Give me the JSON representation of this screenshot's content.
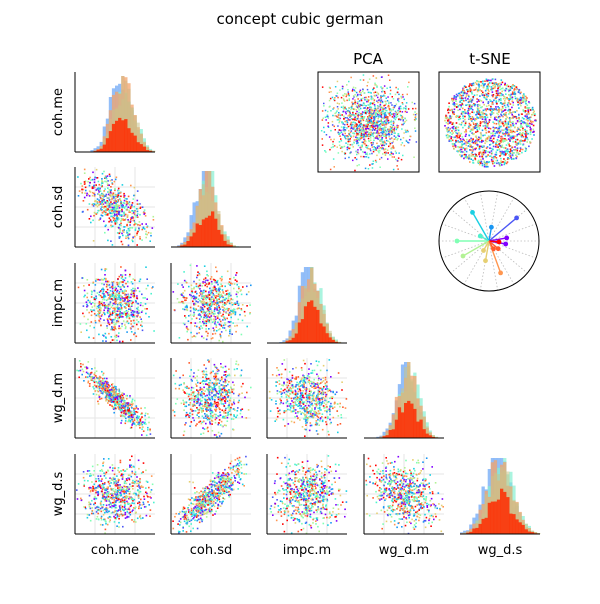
{
  "figure": {
    "title": "concept cubic german",
    "pca_title": "PCA",
    "tsne_title": "t-SNE"
  },
  "colors": {
    "palette": [
      "#8000ff",
      "#4b56f5",
      "#1996f3",
      "#1acfe3",
      "#4cf2ce",
      "#80ffb4",
      "#b2f295",
      "#e6cf72",
      "#ff964f",
      "#ff5a2b",
      "#ff0000"
    ],
    "hist_blue": "#6fa8f6",
    "hist_teal": "#86f0d2",
    "hist_orange": "#f3a36b",
    "hist_olive": "#c8c28a",
    "hist_red": "#ff2a00"
  },
  "chart_data": {
    "type": "scatter",
    "variables": [
      "coh.me",
      "coh.sd",
      "impc.m",
      "wg_d.m",
      "wg_d.s"
    ],
    "matrix_layout": "lower-triangle pair plot with histograms on the diagonal",
    "grid": true,
    "legend": "none",
    "pairwise_trend": {
      "coh.sd~coh.me": "negative",
      "wg_d.m~coh.me": "strong negative",
      "wg_d.s~coh.sd": "strong positive",
      "wg_d.s~wg_d.m": "weak negative",
      "impc.m~coh.me": "none",
      "impc.m~coh.sd": "none"
    },
    "insets": [
      {
        "type": "scatter",
        "title": "PCA"
      },
      {
        "type": "scatter",
        "title": "t-SNE"
      },
      {
        "type": "polar-biplot",
        "title": ""
      }
    ]
  }
}
